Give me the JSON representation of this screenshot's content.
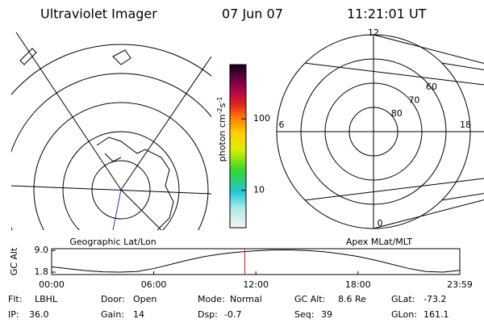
{
  "header": {
    "title": "Ultraviolet Imager",
    "date": "07 Jun 07",
    "time": "11:21:01 UT"
  },
  "geo_panel": {
    "label": "Geographic Lat/Lon"
  },
  "colorbar": {
    "label": "photon cm",
    "exp1": "-2",
    "unit2": "s",
    "exp2": "-1",
    "log": true,
    "clim": [
      3,
      575
    ],
    "ticks": [
      10,
      100
    ]
  },
  "polar_panel": {
    "label": "Apex MLat/MLT",
    "rlim": [
      90,
      50
    ],
    "rticks": [
      80,
      70,
      60
    ],
    "mlt_ticks": [
      12,
      18,
      6,
      0
    ]
  },
  "timeline": {
    "ylabel": "GC Alt",
    "ylim": [
      1.0,
      9.6
    ],
    "yticks": [
      {
        "value": 9,
        "label": "9.0"
      },
      1.8
    ],
    "xlim": [
      0,
      23.983
    ],
    "xticks": [
      {
        "value": 0,
        "label": "00:00"
      },
      {
        "value": 6,
        "label": "06:00"
      },
      {
        "value": 12,
        "label": "12:00"
      },
      {
        "value": 18,
        "label": "18:00"
      },
      {
        "value": 23.983,
        "label": "23:59"
      }
    ],
    "x": [
      0,
      1,
      2,
      3,
      4,
      5,
      6,
      7,
      8,
      9,
      10,
      11,
      12,
      13,
      14,
      15,
      16,
      17,
      18,
      19,
      20,
      21,
      22,
      23,
      23.983
    ],
    "values": [
      3.6,
      2.9,
      2.3,
      1.9,
      1.8,
      2.0,
      3.0,
      4.4,
      5.8,
      7.0,
      7.9,
      8.5,
      8.9,
      9.2,
      9.2,
      9.0,
      8.6,
      7.9,
      7.0,
      5.8,
      4.4,
      3.0,
      2.0,
      1.8,
      2.4
    ],
    "color": "#000000",
    "marker_x": 11.35,
    "marker_color": "#cc2222"
  },
  "info": [
    [
      {
        "label": "Flt:",
        "value": "LBHL"
      },
      {
        "label": "Door:",
        "value": "Open"
      },
      {
        "label": "Mode:",
        "value": "Normal"
      },
      {
        "label": "GC Alt:",
        "value": "8.6 Re"
      },
      {
        "label": "GLat:",
        "value": "-73.2"
      }
    ],
    [
      {
        "label": "IP:",
        "value": "36.0"
      },
      {
        "label": "Gain:",
        "value": "14"
      },
      {
        "label": "Dsp:",
        "value": "-0.7"
      },
      {
        "label": "Seq:",
        "value": "39"
      },
      {
        "label": "GLon:",
        "value": "161.1"
      }
    ]
  ]
}
